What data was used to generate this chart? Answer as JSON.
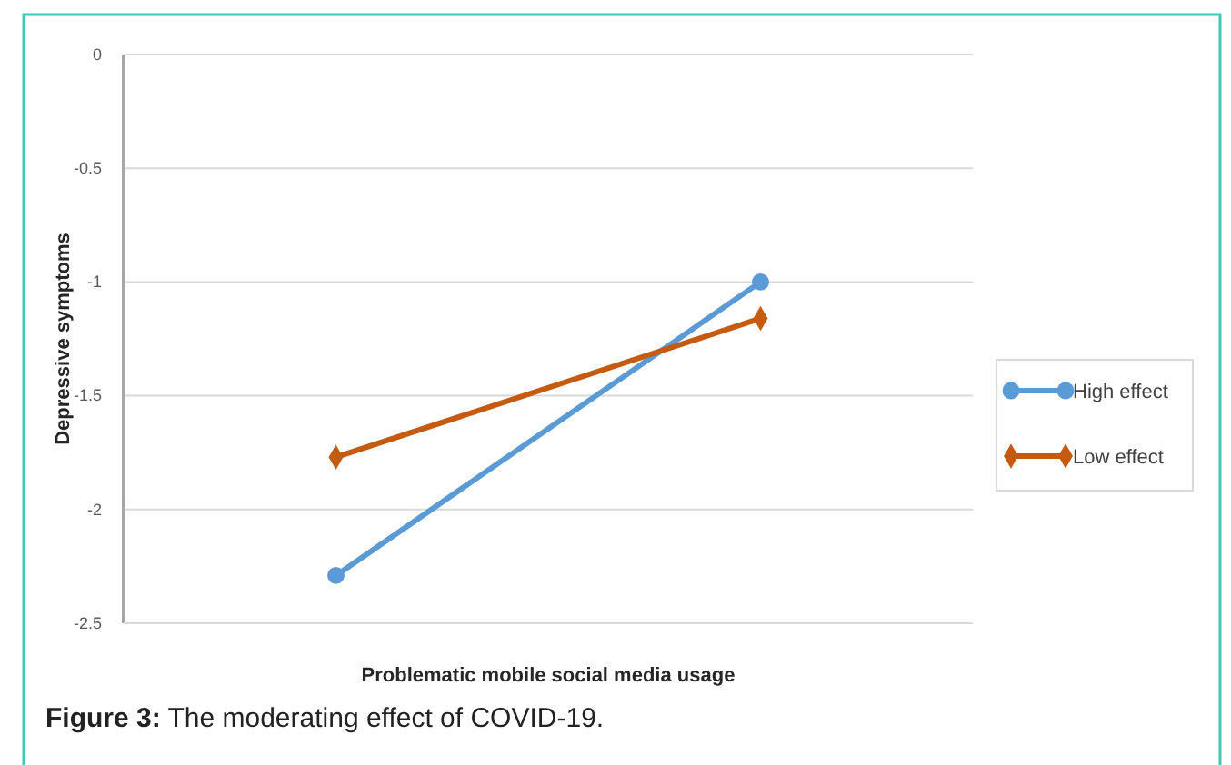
{
  "chart_data": {
    "type": "line",
    "xlabel": "Problematic mobile social media usage",
    "ylabel": "Depressive symptoms",
    "annotations": [
      "Figure 3: The moderating effect of COVID-19."
    ],
    "categories": [
      null,
      null
    ],
    "series": [
      {
        "name": "High effect",
        "color": "#5b9bd5",
        "marker": "circle",
        "values": [
          -2.29,
          -1.0
        ]
      },
      {
        "name": "Low effect",
        "color": "#c55a11",
        "marker": "diamond",
        "values": [
          -1.77,
          -1.16
        ]
      }
    ],
    "ylim": [
      -2.5,
      0
    ],
    "yticks": [
      0,
      -0.5,
      -1,
      -1.5,
      -2,
      -2.5
    ],
    "grid": "y",
    "legend": "right",
    "line_style": "solid"
  }
}
